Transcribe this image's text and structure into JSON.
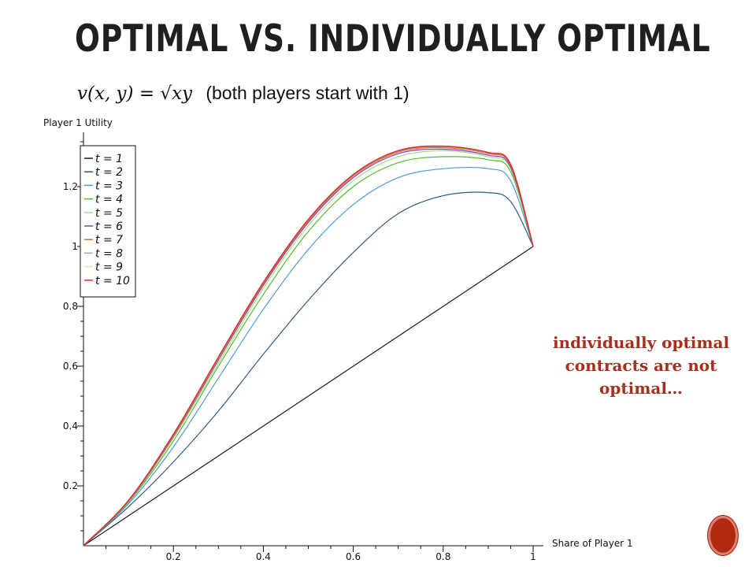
{
  "slide": {
    "title": "OPTIMAL VS. INDIVIDUALLY OPTIMAL",
    "formula": "v(x, y) = √xy",
    "formula_note": "(both players start with 1)",
    "annotation": "individually optimal contracts are not optimal…"
  },
  "colors": {
    "title": "#1f1f1f",
    "annotation": "#a5301d",
    "nav_button": "#b02a12"
  },
  "chart_data": {
    "type": "line",
    "title": "",
    "xlabel": "Share of Player 1",
    "ylabel": "Player 1 Utility",
    "xlim": [
      0,
      1
    ],
    "ylim": [
      0,
      1.35
    ],
    "xticks": [
      0.2,
      0.4,
      0.6,
      0.8,
      1
    ],
    "xtick_labels": [
      "0.2",
      "0.4",
      "0.6",
      "0.8",
      "1"
    ],
    "yticks": [
      0.2,
      0.4,
      0.6,
      0.8,
      1,
      1.2
    ],
    "ytick_labels": [
      "0.2",
      "0.4",
      "0.6",
      "0.8",
      "1",
      "1.2"
    ],
    "grid": false,
    "legend_position": "top-left",
    "x": [
      0,
      0.1,
      0.2,
      0.3,
      0.4,
      0.5,
      0.6,
      0.7,
      0.8,
      0.9,
      0.95,
      1
    ],
    "series": [
      {
        "name": "t = 1",
        "color": "#1c1c1c",
        "values": [
          0,
          0.1,
          0.2,
          0.3,
          0.4,
          0.5,
          0.6,
          0.7,
          0.8,
          0.9,
          0.95,
          1.0
        ]
      },
      {
        "name": "t = 2",
        "color": "#2d5a8a",
        "values": [
          0,
          0.13,
          0.28,
          0.45,
          0.64,
          0.82,
          0.98,
          1.11,
          1.17,
          1.18,
          1.15,
          1.0
        ]
      },
      {
        "name": "t = 3",
        "color": "#4d9ad6",
        "values": [
          0,
          0.14,
          0.33,
          0.56,
          0.79,
          0.99,
          1.14,
          1.23,
          1.26,
          1.26,
          1.22,
          1.0
        ]
      },
      {
        "name": "t = 4",
        "color": "#55bd2c",
        "values": [
          0,
          0.145,
          0.35,
          0.6,
          0.84,
          1.05,
          1.2,
          1.28,
          1.3,
          1.29,
          1.25,
          1.0
        ]
      },
      {
        "name": "t = 5",
        "color": "#9fe085",
        "values": [
          0,
          0.148,
          0.36,
          0.61,
          0.86,
          1.07,
          1.22,
          1.3,
          1.32,
          1.3,
          1.26,
          1.0
        ]
      },
      {
        "name": "t = 6",
        "color": "#8a3db8",
        "values": [
          0,
          0.149,
          0.365,
          0.62,
          0.87,
          1.08,
          1.23,
          1.31,
          1.325,
          1.305,
          1.265,
          1.0
        ]
      },
      {
        "name": "t = 7",
        "color": "#c47a3a",
        "values": [
          0,
          0.15,
          0.368,
          0.625,
          0.875,
          1.085,
          1.235,
          1.315,
          1.33,
          1.31,
          1.27,
          1.0
        ]
      },
      {
        "name": "t = 8",
        "color": "#a8a890",
        "values": [
          0,
          0.15,
          0.37,
          0.627,
          0.878,
          1.088,
          1.238,
          1.318,
          1.333,
          1.312,
          1.272,
          1.0
        ]
      },
      {
        "name": "t = 9",
        "color": "#e2e8a8",
        "values": [
          0,
          0.15,
          0.371,
          0.628,
          0.879,
          1.089,
          1.239,
          1.319,
          1.334,
          1.313,
          1.273,
          1.0
        ]
      },
      {
        "name": "t = 10",
        "color": "#dd2a2a",
        "values": [
          0,
          0.151,
          0.372,
          0.63,
          0.88,
          1.09,
          1.24,
          1.32,
          1.335,
          1.314,
          1.274,
          1.0
        ]
      }
    ]
  }
}
